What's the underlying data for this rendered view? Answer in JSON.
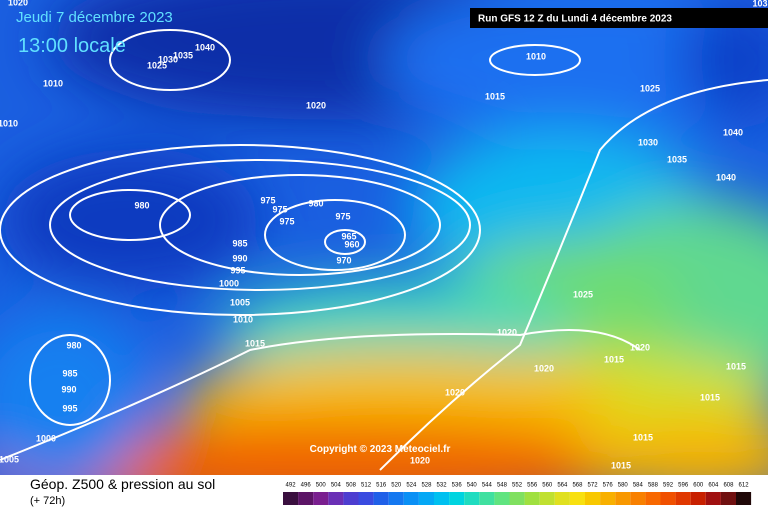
{
  "header": {
    "date": "Jeudi 7 décembre 2023",
    "time": "13:00 locale",
    "run": "Run GFS 12 Z du Lundi 4 décembre 2023"
  },
  "copyright": "Copyright © 2023 Meteociel.fr",
  "isobar_labels": [
    "1020",
    "1040",
    "1035",
    "1030",
    "1025",
    "1010",
    "1010",
    "1020",
    "1010",
    "1015",
    "1025",
    "103",
    "1040",
    "1030",
    "1035",
    "1040",
    "980",
    "975",
    "975",
    "975",
    "980",
    "975",
    "965",
    "960",
    "970",
    "985",
    "990",
    "995",
    "1000",
    "1005",
    "1010",
    "1015",
    "1020",
    "1025",
    "1020",
    "1015",
    "1020",
    "1015",
    "1015",
    "1020",
    "1015",
    "1015",
    "980",
    "985",
    "990",
    "995",
    "1000",
    "1005",
    "1020"
  ],
  "legend": {
    "title": "Géop. Z500 & pression au sol",
    "subtitle": "(+ 72h)"
  },
  "colorbar": {
    "ticks": [
      492,
      496,
      500,
      504,
      508,
      512,
      516,
      520,
      524,
      528,
      532,
      536,
      540,
      544,
      548,
      552,
      556,
      560,
      564,
      568,
      572,
      576,
      580,
      584,
      588,
      592,
      596,
      600,
      604,
      608,
      612
    ],
    "colors": [
      "#3a0f3f",
      "#5c1466",
      "#7a1f8f",
      "#6a2fb5",
      "#4d3dd0",
      "#3a4be0",
      "#2060e8",
      "#1478f0",
      "#0a90f5",
      "#05a8f5",
      "#00c0f0",
      "#00d4e0",
      "#20dcc0",
      "#40e0a0",
      "#60e480",
      "#80e060",
      "#a0e040",
      "#c0e030",
      "#e0e020",
      "#f8e010",
      "#f8c800",
      "#f8b000",
      "#f89800",
      "#f88000",
      "#f86800",
      "#f05000",
      "#e03800",
      "#c82000",
      "#a01010",
      "#701010",
      "#200808"
    ]
  }
}
